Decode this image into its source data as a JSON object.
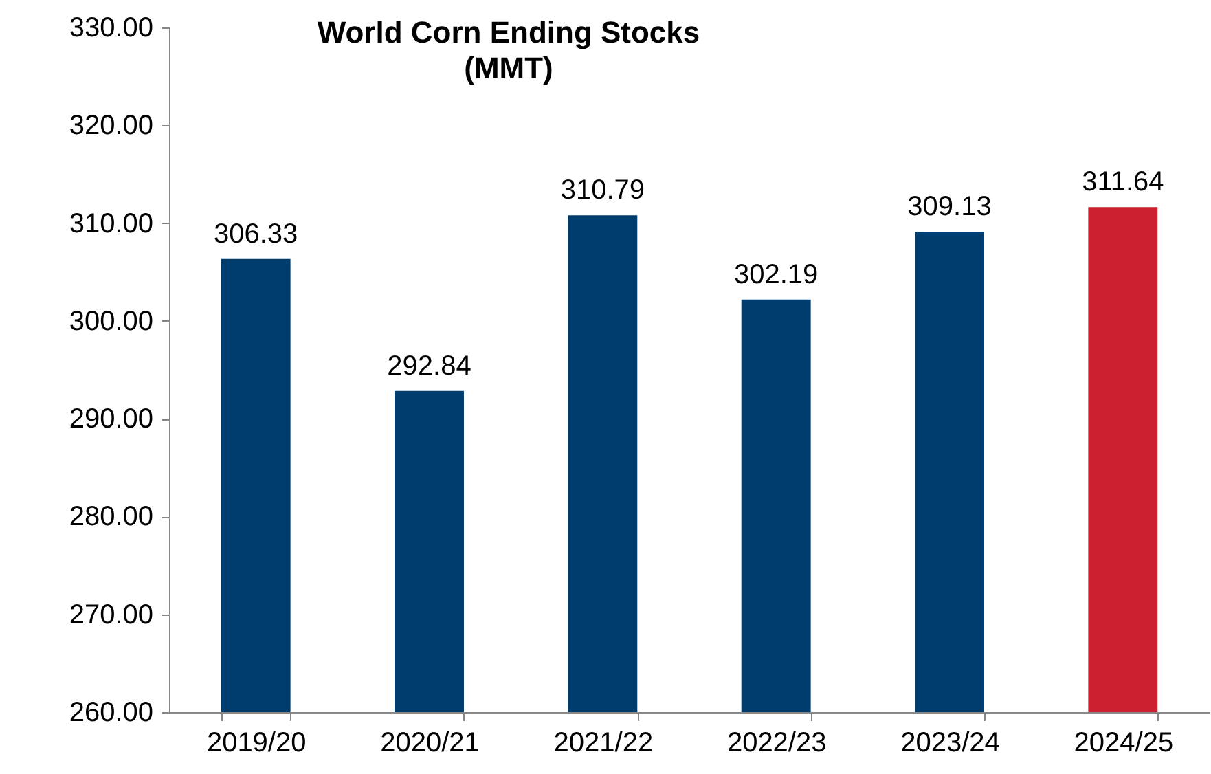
{
  "chart_data": {
    "type": "bar",
    "title": "World Corn Ending Stocks",
    "subtitle": "(MMT)",
    "categories": [
      "2019/20",
      "2020/21",
      "2021/22",
      "2022/23",
      "2023/24",
      "2024/25"
    ],
    "values": [
      306.33,
      292.84,
      310.79,
      302.19,
      309.13,
      311.64
    ],
    "colors": [
      "#003d6f",
      "#003d6f",
      "#003d6f",
      "#003d6f",
      "#003d6f",
      "#cc1f2f"
    ],
    "ylim": [
      260,
      330
    ],
    "yticks": [
      {
        "value": 260,
        "label": "260.00"
      },
      {
        "value": 270,
        "label": "270.00"
      },
      {
        "value": 280,
        "label": "280.00"
      },
      {
        "value": 290,
        "label": "290.00"
      },
      {
        "value": 300,
        "label": "300.00"
      },
      {
        "value": 310,
        "label": "310.00"
      },
      {
        "value": 320,
        "label": "320.00"
      },
      {
        "value": 330,
        "label": "330.00"
      }
    ],
    "data_labels": true,
    "grid": false
  }
}
